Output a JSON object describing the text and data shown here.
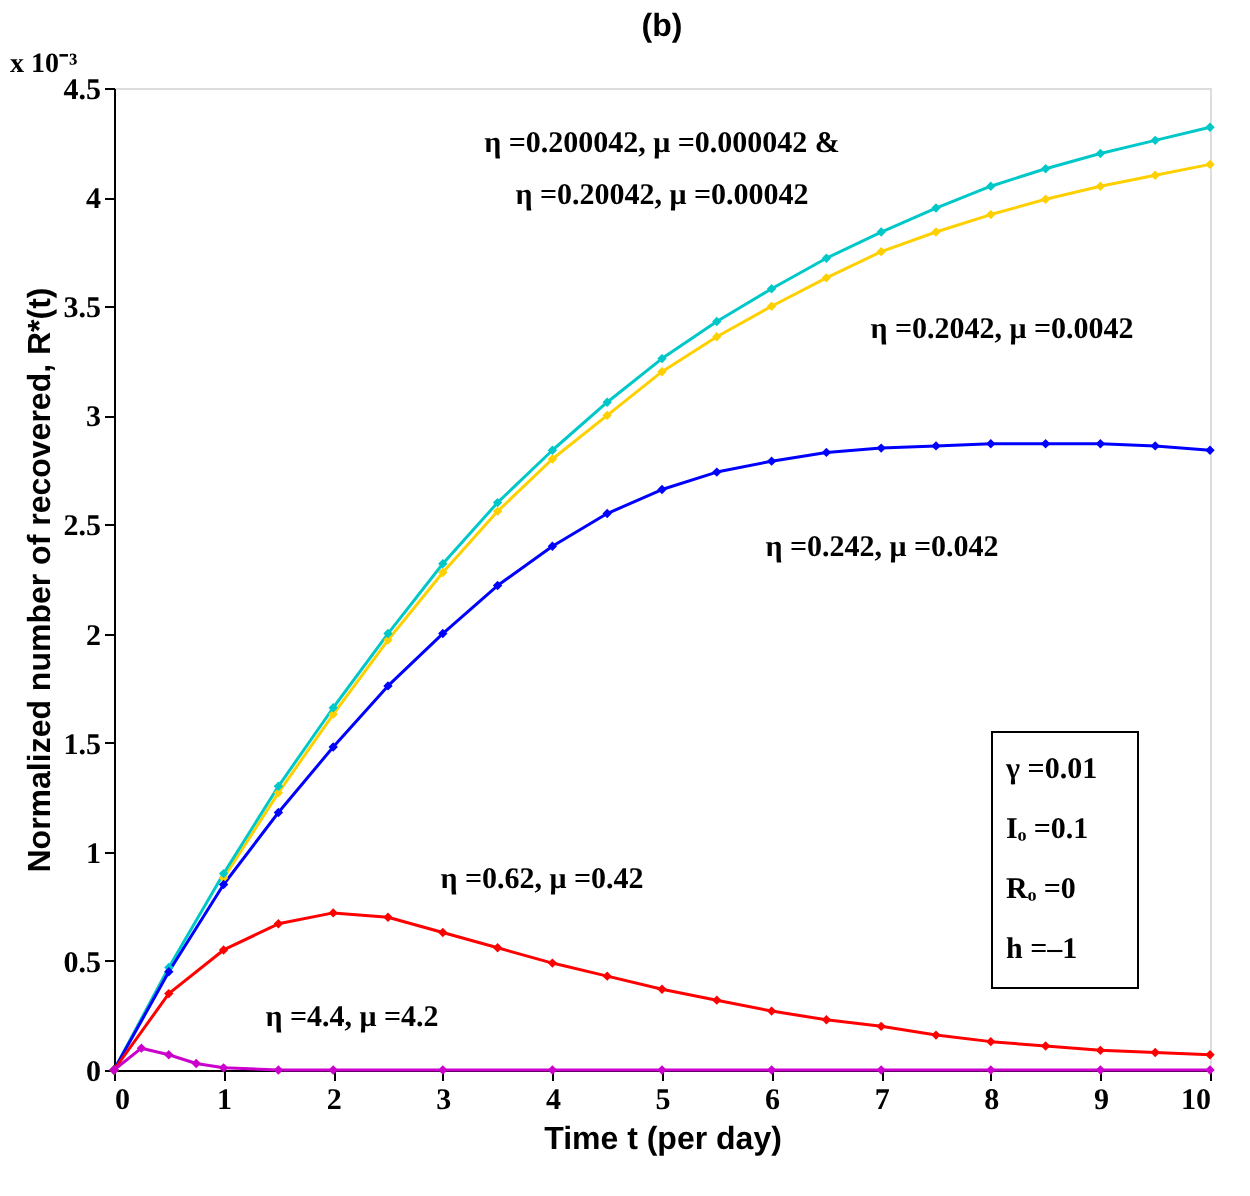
{
  "chart_data": {
    "type": "line",
    "title": "(b)",
    "xlabel": "Time t (per day)",
    "ylabel": "Normalized number of recovered, R*(t)",
    "xlim": [
      0,
      10
    ],
    "xticks": [
      0,
      1,
      2,
      3,
      4,
      5,
      6,
      7,
      8,
      9,
      10
    ],
    "ylim": [
      0,
      4.5
    ],
    "yticks": [
      0,
      0.5,
      1,
      1.5,
      2,
      2.5,
      3,
      3.5,
      4,
      4.5
    ],
    "grid": false,
    "legend": false,
    "marker": "diamond",
    "line_style": "solid",
    "x": [
      0,
      0.5,
      1,
      1.5,
      2,
      2.5,
      3,
      3.5,
      4,
      4.5,
      5,
      5.5,
      6,
      6.5,
      7,
      7.5,
      8,
      8.5,
      9,
      9.5,
      10
    ],
    "series": [
      {
        "color": "#ffd000",
        "values": [
          0,
          null,
          0.88,
          1.27,
          1.63,
          1.97,
          2.28,
          2.56,
          2.8,
          3.0,
          3.2,
          3.36,
          3.5,
          3.63,
          3.75,
          3.84,
          3.92,
          3.99,
          4.05,
          4.1,
          4.15
        ]
      },
      {
        "color": "#00c8c8",
        "values": [
          0,
          0.47,
          0.9,
          1.3,
          1.66,
          2.0,
          2.32,
          2.6,
          2.84,
          3.06,
          3.26,
          3.43,
          3.58,
          3.72,
          3.84,
          3.95,
          4.05,
          4.13,
          4.2,
          4.26,
          4.32
        ]
      },
      {
        "color": "#0000ff",
        "values": [
          0,
          0.45,
          0.85,
          1.18,
          1.48,
          1.76,
          2.0,
          2.22,
          2.4,
          2.55,
          2.66,
          2.74,
          2.79,
          2.83,
          2.85,
          2.86,
          2.87,
          2.87,
          2.87,
          2.86,
          2.84
        ]
      },
      {
        "color": "#ff0000",
        "values": [
          0,
          0.35,
          0.55,
          0.67,
          0.72,
          0.7,
          0.63,
          0.56,
          0.49,
          0.43,
          0.37,
          0.32,
          0.27,
          0.23,
          0.2,
          0.16,
          0.13,
          0.11,
          0.09,
          0.08,
          0.07
        ]
      },
      {
        "color": "#cc00cc",
        "x": [
          0,
          0.25,
          0.5,
          0.75,
          1,
          1.5,
          2,
          3,
          4,
          5,
          6,
          7,
          8,
          9,
          10
        ],
        "values": [
          0,
          0.1,
          0.07,
          0.03,
          0.01,
          0,
          0,
          0,
          0,
          0,
          0,
          0,
          0,
          0,
          0
        ]
      }
    ],
    "annotations": [
      "x 10⁻³",
      "γ =0.01",
      "Iₒ =0.1",
      "Rₒ =0",
      "h =–1",
      "η =0.200042, μ =0.000042 &",
      "η =0.20042, μ =0.00042",
      "η =0.2042, μ =0.0042",
      "η =0.242, μ =0.042",
      "η =0.62, μ =0.42",
      "η =4.4, μ =4.2"
    ]
  }
}
